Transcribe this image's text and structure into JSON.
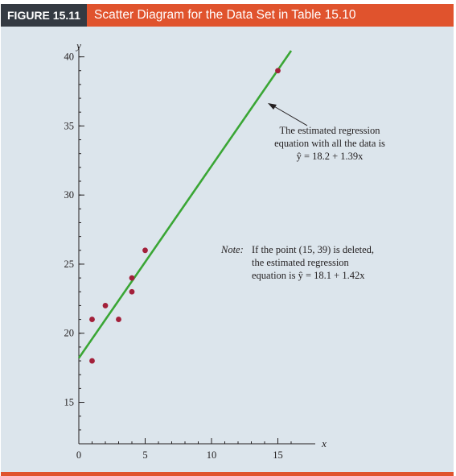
{
  "header": {
    "figure_label": "FIGURE 15.11",
    "figure_title": "Scatter Diagram for the Data Set in Table 15.10"
  },
  "colors": {
    "header_bar": "#e0532d",
    "label_box": "#343a42",
    "panel": "#dce5ec",
    "regression_line": "#3aa635",
    "points": "#a3203a"
  },
  "chart_data": {
    "type": "scatter",
    "title": "",
    "xlabel": "x",
    "ylabel": "y",
    "xlim": [
      0,
      16
    ],
    "ylim": [
      12,
      40.5
    ],
    "x_ticks": [
      0,
      5,
      10,
      15
    ],
    "y_ticks": [
      15,
      20,
      25,
      30,
      35,
      40
    ],
    "points": [
      {
        "x": 1,
        "y": 18
      },
      {
        "x": 1,
        "y": 21
      },
      {
        "x": 2,
        "y": 22
      },
      {
        "x": 3,
        "y": 21
      },
      {
        "x": 4,
        "y": 23
      },
      {
        "x": 4,
        "y": 24
      },
      {
        "x": 5,
        "y": 26
      },
      {
        "x": 15,
        "y": 39
      }
    ],
    "regression_line": {
      "intercept": 18.2,
      "slope": 1.39,
      "x_range": [
        0,
        16
      ]
    },
    "grid": false,
    "annotations": {
      "regression_note": [
        "The estimated regression",
        "equation with all the data is",
        "ŷ = 18.2 + 1.39x"
      ],
      "deleted_note_prefix": "Note:",
      "deleted_note": [
        "If the point (15, 39) is deleted,",
        "the estimated regression",
        "equation is ŷ = 18.1 + 1.42x"
      ]
    }
  }
}
